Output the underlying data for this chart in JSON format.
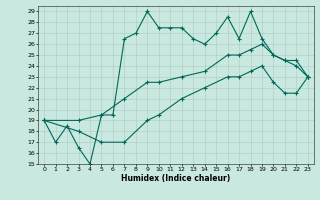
{
  "xlabel": "Humidex (Indice chaleur)",
  "xlim": [
    -0.5,
    23.5
  ],
  "ylim": [
    15,
    29.5
  ],
  "yticks": [
    15,
    16,
    17,
    18,
    19,
    20,
    21,
    22,
    23,
    24,
    25,
    26,
    27,
    28,
    29
  ],
  "xticks": [
    0,
    1,
    2,
    3,
    4,
    5,
    6,
    7,
    8,
    9,
    10,
    11,
    12,
    13,
    14,
    15,
    16,
    17,
    18,
    19,
    20,
    21,
    22,
    23
  ],
  "background_color": "#c8e8e0",
  "grid_color": "#b0c8c0",
  "line_color": "#006858",
  "line1_x": [
    0,
    1,
    2,
    3,
    4,
    5,
    6,
    7,
    8,
    9,
    10,
    11,
    12,
    13,
    14,
    15,
    16,
    17,
    18,
    19,
    20,
    21,
    22,
    23
  ],
  "line1_y": [
    19,
    17,
    18.5,
    16.5,
    15,
    19.5,
    19.5,
    26.5,
    27,
    29,
    27.5,
    27.5,
    27.5,
    26.5,
    26,
    27,
    28.5,
    26.5,
    29,
    26.5,
    25,
    24.5,
    24,
    23
  ],
  "line2_x": [
    0,
    3,
    5,
    7,
    9,
    10,
    12,
    14,
    16,
    17,
    18,
    19,
    20,
    21,
    22,
    23
  ],
  "line2_y": [
    19,
    19,
    19.5,
    21,
    22.5,
    22.5,
    23,
    23.5,
    25,
    25,
    25.5,
    26,
    25,
    24.5,
    24.5,
    23
  ],
  "line3_x": [
    0,
    3,
    5,
    7,
    9,
    10,
    12,
    14,
    16,
    17,
    18,
    19,
    20,
    21,
    22,
    23
  ],
  "line3_y": [
    19,
    18,
    17,
    17,
    19,
    19.5,
    21,
    22,
    23,
    23,
    23.5,
    24,
    22.5,
    21.5,
    21.5,
    23
  ]
}
